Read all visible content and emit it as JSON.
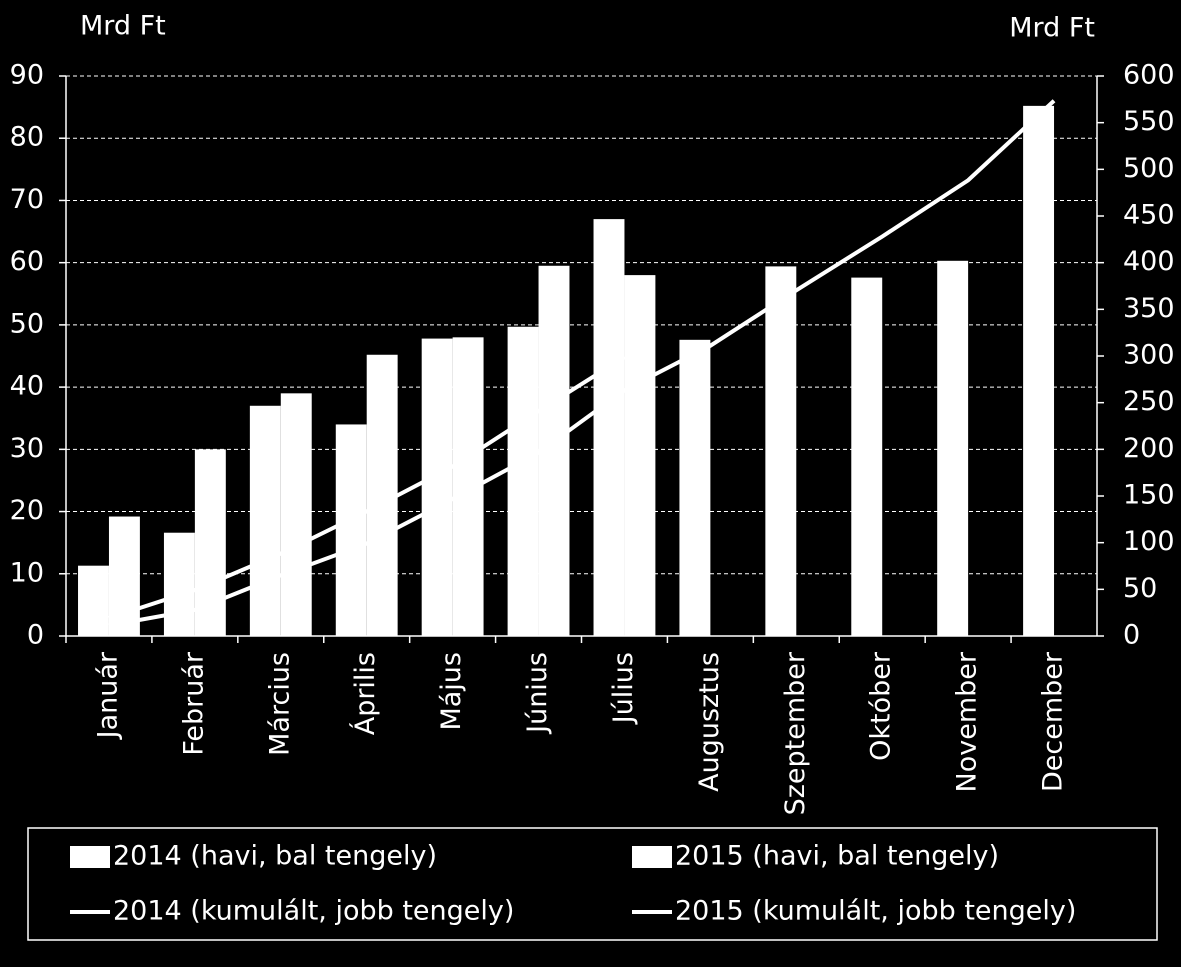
{
  "chart_data": {
    "type": "bar",
    "y_label": "Mrd Ft",
    "y2_label": "Mrd Ft",
    "categories": [
      "Január",
      "Február",
      "Március",
      "Április",
      "Május",
      "Június",
      "Július",
      "Augusztus",
      "Szeptember",
      "Október",
      "November",
      "December"
    ],
    "series": [
      {
        "name": "2014 (havi, bal tengely)",
        "type": "bar",
        "axis": "y",
        "color": "#ffffff",
        "values": [
          11.3,
          16.6,
          37,
          34,
          47.8,
          49.7,
          67,
          47.6,
          59.4,
          57.6,
          60.3,
          85.2
        ]
      },
      {
        "name": "2015 (havi, bal tengely)",
        "type": "bar",
        "axis": "y",
        "color": "#ffffff",
        "values": [
          19.2,
          30,
          39,
          45.2,
          48,
          59.5,
          58,
          null,
          null,
          null,
          null,
          null
        ]
      },
      {
        "name": "2014 (kumulált, jobb tengely)",
        "type": "line",
        "axis": "y2",
        "color": "#ffffff",
        "values": [
          11.3,
          27.9,
          64.9,
          98.9,
          146.7,
          196.4,
          263.4,
          311,
          370.4,
          428,
          488.3,
          573.5
        ]
      },
      {
        "name": "2015 (kumulált, jobb tengely)",
        "type": "line",
        "axis": "y2",
        "color": "#ffffff",
        "values": [
          19.2,
          49.2,
          88.2,
          133.4,
          181.4,
          240.9,
          298.9,
          null,
          null,
          null,
          null,
          null
        ]
      }
    ],
    "ylim": [
      0,
      90
    ],
    "yticks": [
      0,
      10,
      20,
      30,
      40,
      50,
      60,
      70,
      80,
      90
    ],
    "y2lim": [
      0,
      600
    ],
    "y2ticks": [
      0,
      50,
      100,
      150,
      200,
      250,
      300,
      350,
      400,
      450,
      500,
      550,
      600
    ],
    "grid": true,
    "legend": "bottom"
  }
}
